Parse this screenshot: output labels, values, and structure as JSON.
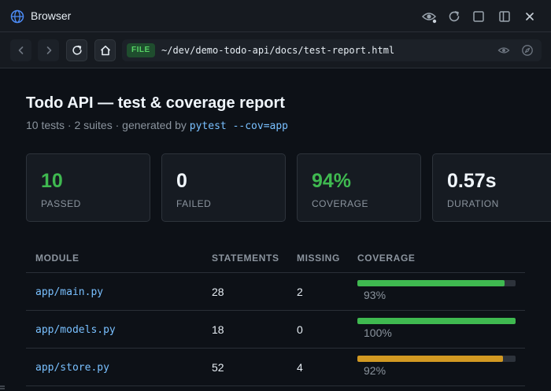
{
  "window": {
    "title": "Browser"
  },
  "navbar": {
    "badge": "FILE",
    "url": "~/dev/demo-todo-api/docs/test-report.html"
  },
  "report": {
    "title": "Todo API — test & coverage report",
    "subtitle_prefix": "10 tests · 2 suites · generated by ",
    "subtitle_cmd": "pytest --cov=app"
  },
  "stats": [
    {
      "value": "10",
      "label": "PASSED",
      "color": "#3fb950"
    },
    {
      "value": "0",
      "label": "FAILED",
      "color": "#f0f6fc"
    },
    {
      "value": "94%",
      "label": "COVERAGE",
      "color": "#3fb950"
    },
    {
      "value": "0.57s",
      "label": "DURATION",
      "color": "#f0f6fc"
    }
  ],
  "table": {
    "headers": [
      "MODULE",
      "STATEMENTS",
      "MISSING",
      "COVERAGE"
    ],
    "rows": [
      {
        "module": "app/main.py",
        "statements": "28",
        "missing": "2",
        "coverage": "93%",
        "fill": 0.93,
        "bar_color": "#3fb950"
      },
      {
        "module": "app/models.py",
        "statements": "18",
        "missing": "0",
        "coverage": "100%",
        "fill": 1.0,
        "bar_color": "#3fb950"
      },
      {
        "module": "app/store.py",
        "statements": "52",
        "missing": "4",
        "coverage": "92%",
        "fill": 0.92,
        "bar_color": "#d29922"
      }
    ]
  }
}
